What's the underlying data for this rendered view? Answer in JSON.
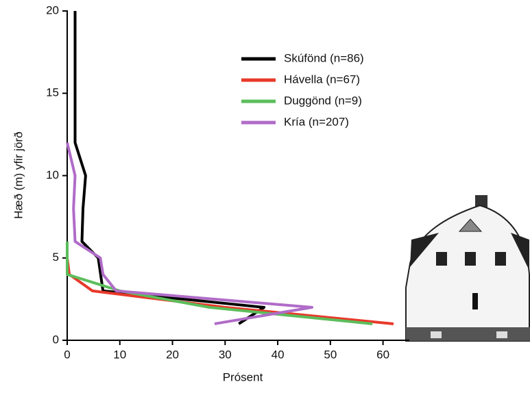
{
  "chart_data": {
    "type": "line",
    "x_label": "Prósent",
    "y_label": "Hæð (m) yfir jörð",
    "xlim": [
      0,
      65
    ],
    "ylim": [
      0,
      20
    ],
    "xticks": [
      0,
      10,
      20,
      30,
      40,
      50,
      60
    ],
    "yticks": [
      0,
      5,
      10,
      15,
      20
    ],
    "legend": "upper-center",
    "series": [
      {
        "name": "Skúfönd (n=86)",
        "color": "#000000",
        "x": [
          1.5,
          1.5,
          3.5,
          3,
          2.8,
          5.9,
          6.8,
          37.4,
          32.6
        ],
        "values": [
          20,
          12,
          10,
          8,
          6,
          5,
          3,
          2,
          1
        ]
      },
      {
        "name": "Hávella (n=67)",
        "color": "#e8392a",
        "x": [
          0,
          0.4,
          4.8,
          30,
          62
        ],
        "values": [
          5,
          4,
          3,
          2,
          1
        ]
      },
      {
        "name": "Duggönd (n=9)",
        "color": "#5cbd5c",
        "x": [
          0,
          0,
          10,
          27,
          58
        ],
        "values": [
          6,
          4,
          3,
          2,
          1
        ]
      },
      {
        "name": "Kría (n=207)",
        "color": "#b06cc8",
        "x": [
          0,
          1.5,
          1.2,
          1.5,
          6.3,
          6.8,
          9.3,
          46.5,
          28
        ],
        "values": [
          12,
          10,
          8,
          6,
          5,
          4,
          3,
          2,
          1
        ]
      }
    ]
  }
}
